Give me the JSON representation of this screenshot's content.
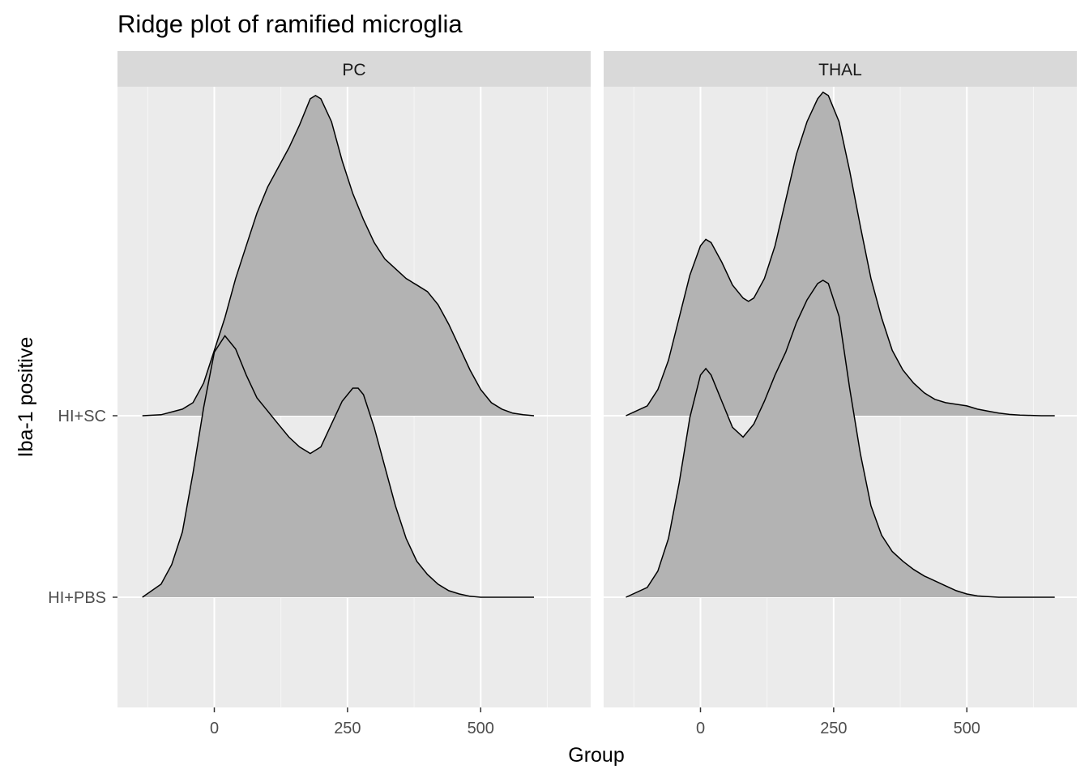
{
  "chart_data": {
    "type": "ridgeline",
    "title": "Ridge plot of ramified microglia",
    "xlabel": "Group",
    "ylabel": "Iba-1 positive",
    "facets": [
      "PC",
      "THAL"
    ],
    "categories": [
      "HI+PBS",
      "HI+SC"
    ],
    "x_ticks": [
      0,
      250,
      500
    ],
    "x_range": [
      -180,
      710
    ],
    "ridge_scale_units": 1.8,
    "fill_color": "#b3b3b3",
    "panel_background": "#ebebeb",
    "strip_background": "#d9d9d9",
    "gridline_color": "#ffffff",
    "grid": true,
    "series": [
      {
        "facet": "PC",
        "category": "HI+SC",
        "x": [
          -135,
          -100,
          -60,
          -40,
          -20,
          0,
          20,
          40,
          60,
          80,
          100,
          120,
          140,
          160,
          180,
          190,
          200,
          220,
          240,
          260,
          280,
          300,
          320,
          340,
          360,
          380,
          400,
          420,
          440,
          460,
          480,
          500,
          520,
          540,
          560,
          580,
          600
        ],
        "y": [
          0,
          0.003,
          0.02,
          0.04,
          0.1,
          0.2,
          0.3,
          0.42,
          0.52,
          0.62,
          0.7,
          0.76,
          0.82,
          0.89,
          0.97,
          0.98,
          0.97,
          0.9,
          0.78,
          0.68,
          0.6,
          0.53,
          0.48,
          0.45,
          0.42,
          0.4,
          0.38,
          0.34,
          0.28,
          0.21,
          0.14,
          0.08,
          0.04,
          0.02,
          0.008,
          0.003,
          0
        ]
      },
      {
        "facet": "PC",
        "category": "HI+PBS",
        "x": [
          -135,
          -100,
          -80,
          -60,
          -40,
          -20,
          0,
          20,
          40,
          60,
          80,
          100,
          120,
          140,
          160,
          180,
          200,
          220,
          240,
          260,
          270,
          280,
          300,
          320,
          340,
          360,
          380,
          400,
          420,
          440,
          460,
          480,
          500,
          550,
          600
        ],
        "y": [
          0,
          0.04,
          0.1,
          0.2,
          0.38,
          0.58,
          0.75,
          0.8,
          0.76,
          0.68,
          0.61,
          0.57,
          0.53,
          0.49,
          0.46,
          0.44,
          0.46,
          0.53,
          0.6,
          0.64,
          0.64,
          0.62,
          0.52,
          0.4,
          0.28,
          0.18,
          0.11,
          0.07,
          0.04,
          0.02,
          0.01,
          0.003,
          0,
          0,
          0
        ]
      },
      {
        "facet": "THAL",
        "category": "HI+SC",
        "x": [
          -140,
          -100,
          -80,
          -60,
          -40,
          -20,
          0,
          10,
          20,
          40,
          60,
          80,
          90,
          100,
          120,
          140,
          160,
          180,
          200,
          220,
          230,
          240,
          260,
          280,
          300,
          320,
          340,
          360,
          380,
          400,
          420,
          440,
          460,
          480,
          500,
          520,
          540,
          560,
          580,
          600,
          620,
          640,
          665
        ],
        "y": [
          0,
          0.03,
          0.08,
          0.17,
          0.3,
          0.43,
          0.52,
          0.54,
          0.53,
          0.47,
          0.4,
          0.36,
          0.35,
          0.36,
          0.42,
          0.52,
          0.66,
          0.8,
          0.9,
          0.97,
          0.99,
          0.98,
          0.9,
          0.75,
          0.58,
          0.42,
          0.3,
          0.2,
          0.14,
          0.1,
          0.07,
          0.05,
          0.04,
          0.035,
          0.03,
          0.02,
          0.014,
          0.008,
          0.004,
          0.002,
          0.001,
          0,
          0
        ]
      },
      {
        "facet": "THAL",
        "category": "HI+PBS",
        "x": [
          -140,
          -100,
          -80,
          -60,
          -40,
          -20,
          0,
          10,
          20,
          40,
          60,
          80,
          100,
          120,
          140,
          160,
          180,
          200,
          220,
          230,
          240,
          260,
          280,
          300,
          320,
          340,
          360,
          380,
          400,
          420,
          440,
          460,
          480,
          500,
          520,
          540,
          560,
          600,
          665
        ],
        "y": [
          0,
          0.03,
          0.08,
          0.18,
          0.35,
          0.55,
          0.68,
          0.7,
          0.68,
          0.6,
          0.52,
          0.49,
          0.53,
          0.6,
          0.68,
          0.75,
          0.84,
          0.91,
          0.96,
          0.97,
          0.96,
          0.86,
          0.64,
          0.44,
          0.28,
          0.19,
          0.14,
          0.11,
          0.085,
          0.065,
          0.05,
          0.035,
          0.02,
          0.01,
          0.004,
          0.002,
          0,
          0,
          0
        ]
      }
    ]
  }
}
